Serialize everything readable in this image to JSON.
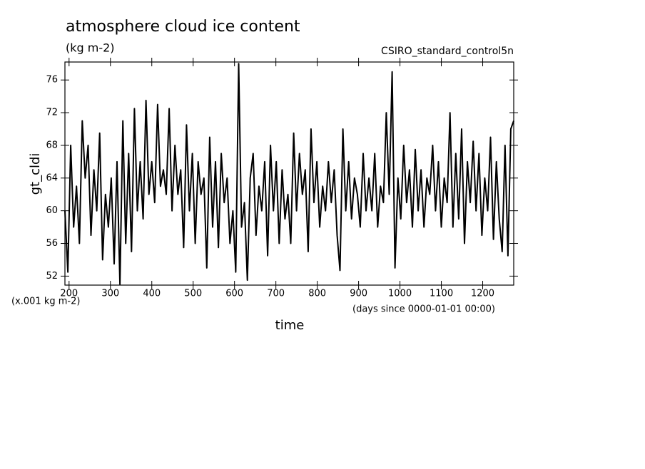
{
  "chart_data": {
    "type": "line",
    "title": "atmosphere cloud ice content",
    "subtitle": "(kg m-2)",
    "annotation": "CSIRO_standard_control5n",
    "y_label": "gt_cldi",
    "y_units": "(x.001 kg m-2)",
    "x_label": "time",
    "x_units": "(days since 0000-01-01 00:00)",
    "color": "#000000",
    "xlim": [
      190,
      1275
    ],
    "ylim": [
      50.9,
      78.2
    ],
    "xticks": [
      200,
      300,
      400,
      500,
      600,
      700,
      800,
      900,
      1000,
      1100,
      1200
    ],
    "yticks": [
      52,
      56,
      60,
      64,
      68,
      72,
      76
    ],
    "x": [
      190,
      197,
      204,
      211,
      218,
      225,
      232,
      239,
      246,
      253,
      260,
      267,
      274,
      281,
      288,
      295,
      302,
      309,
      316,
      323,
      330,
      337,
      344,
      351,
      358,
      365,
      372,
      379,
      386,
      393,
      400,
      407,
      414,
      421,
      428,
      435,
      442,
      449,
      456,
      463,
      470,
      477,
      484,
      491,
      498,
      505,
      512,
      519,
      526,
      533,
      540,
      547,
      554,
      561,
      568,
      575,
      582,
      589,
      596,
      603,
      610,
      617,
      624,
      631,
      638,
      645,
      652,
      659,
      666,
      673,
      680,
      687,
      694,
      701,
      708,
      715,
      722,
      729,
      736,
      743,
      750,
      757,
      764,
      771,
      778,
      785,
      792,
      799,
      806,
      813,
      820,
      827,
      834,
      841,
      848,
      855,
      862,
      869,
      876,
      883,
      890,
      897,
      904,
      911,
      918,
      925,
      932,
      939,
      946,
      953,
      960,
      967,
      974,
      981,
      988,
      995,
      1002,
      1009,
      1016,
      1023,
      1030,
      1037,
      1044,
      1051,
      1058,
      1065,
      1072,
      1079,
      1086,
      1093,
      1100,
      1107,
      1114,
      1121,
      1128,
      1135,
      1142,
      1149,
      1156,
      1163,
      1170,
      1177,
      1184,
      1191,
      1198,
      1205,
      1212,
      1219,
      1226,
      1233,
      1240,
      1247,
      1254,
      1261,
      1268,
      1275
    ],
    "values": [
      60,
      52.5,
      68,
      58,
      63,
      56,
      71,
      64,
      68,
      57,
      65,
      60,
      69.5,
      54,
      62,
      58,
      64,
      53.5,
      66,
      51,
      71,
      56,
      67,
      55,
      72.5,
      60,
      66,
      59,
      73.5,
      62,
      66,
      61,
      73,
      63,
      65,
      62,
      72.5,
      60,
      68,
      62,
      65,
      55.5,
      70.5,
      60,
      67,
      56,
      66,
      62,
      64,
      53,
      69,
      58,
      66,
      55.5,
      67,
      61,
      64,
      56,
      60,
      52.5,
      78,
      58,
      61,
      51.5,
      64,
      67,
      57,
      63,
      60,
      66,
      54.5,
      68,
      60,
      66,
      56,
      65,
      59,
      62,
      56,
      69.5,
      60,
      67,
      62,
      65,
      55,
      70,
      61,
      66,
      58,
      63,
      60,
      66,
      61,
      65,
      57,
      52.7,
      70,
      60,
      66,
      59,
      64,
      62,
      58,
      67,
      60,
      64,
      60,
      67,
      58,
      63,
      61,
      72,
      62,
      77,
      53,
      64,
      59,
      68,
      61,
      65,
      58,
      67.5,
      60,
      65,
      58,
      64,
      62,
      68,
      60,
      66,
      58,
      64,
      61,
      72,
      58,
      67,
      59,
      70,
      56,
      66,
      61,
      68.5,
      60,
      67,
      57,
      64,
      60,
      69,
      56.5,
      66,
      59,
      55,
      68,
      54.5,
      70,
      71
    ]
  }
}
